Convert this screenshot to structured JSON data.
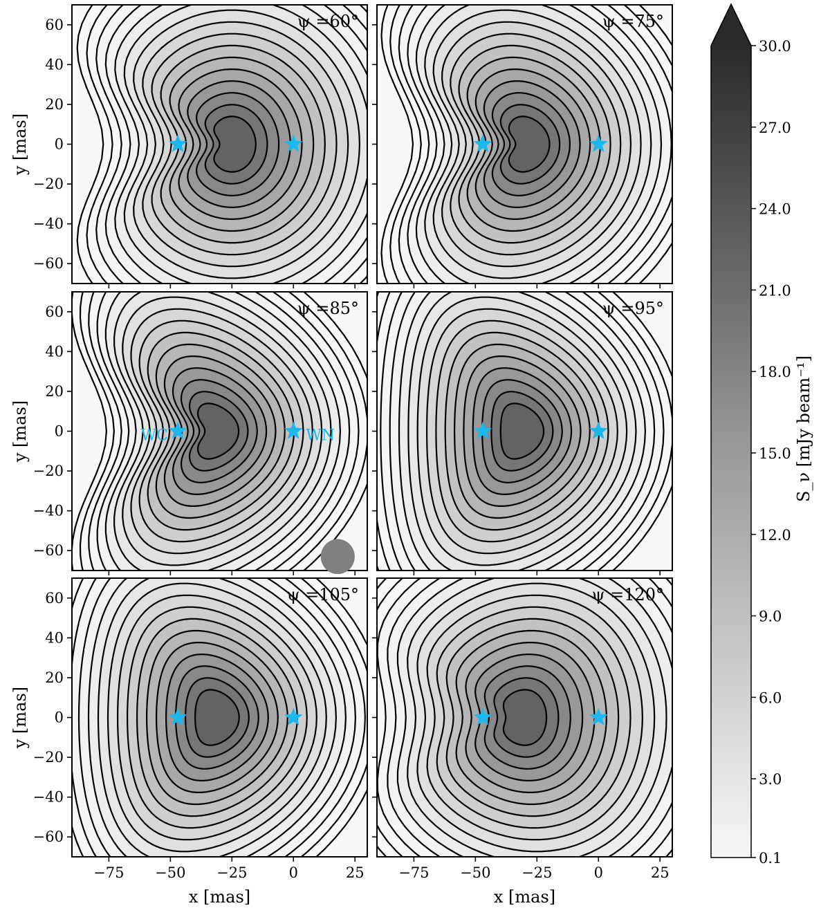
{
  "chart_data": {
    "type": "contour",
    "panels": [
      {
        "psi_label": "ψ =60°",
        "psi_deg": 60
      },
      {
        "psi_label": "ψ =75°",
        "psi_deg": 75
      },
      {
        "psi_label": "ψ =85°",
        "psi_deg": 85
      },
      {
        "psi_label": "ψ =95°",
        "psi_deg": 95
      },
      {
        "psi_label": "ψ =105°",
        "psi_deg": 105
      },
      {
        "psi_label": "ψ =120°",
        "psi_deg": 120
      }
    ],
    "xlabel": "x [mas]",
    "ylabel": "y [mas]",
    "xlim": [
      -90,
      30
    ],
    "ylim": [
      -70,
      70
    ],
    "xticks": [
      -75,
      -50,
      -25,
      0,
      25
    ],
    "xtick_labels": [
      "−75",
      "−50",
      "−25",
      "0",
      "25"
    ],
    "yticks": [
      -60,
      -40,
      -20,
      0,
      20,
      40,
      60
    ],
    "ytick_labels": [
      "−60",
      "−40",
      "−20",
      "0",
      "20",
      "40",
      "60"
    ],
    "stars": [
      {
        "name": "WC",
        "x": -47,
        "y": 0
      },
      {
        "name": "WN",
        "x": 0,
        "y": 0
      }
    ],
    "star_labels_panel": 2,
    "star_color": "#1ab8ec",
    "beam": {
      "panel": 2,
      "x": 18,
      "y": -63,
      "major": 11,
      "minor": 6
    },
    "colorbar": {
      "label": "S_ν [mJy beam⁻¹]",
      "min": 0.1,
      "max": 30.0,
      "ticks": [
        0.1,
        3.0,
        6.0,
        9.0,
        12.0,
        15.0,
        18.0,
        21.0,
        24.0,
        27.0,
        30.0
      ],
      "tick_labels": [
        "0.1",
        "3.0",
        "6.0",
        "9.0",
        "12.0",
        "15.0",
        "18.0",
        "21.0",
        "24.0",
        "27.0",
        "30.0"
      ],
      "extend": "max",
      "colormap": "Greys",
      "color_low": "#f7f7f7",
      "color_high": "#2a2a2a"
    }
  }
}
